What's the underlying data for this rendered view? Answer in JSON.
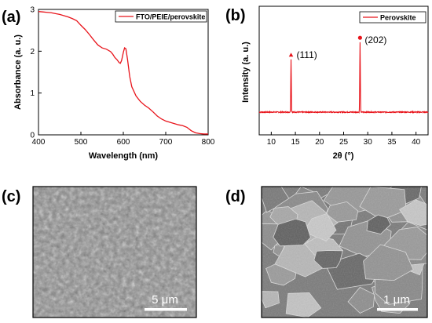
{
  "panels": {
    "a": "(a)",
    "b": "(b)",
    "c": "(c)",
    "d": "(d)"
  },
  "colors": {
    "series": "#e8141b",
    "axis": "#000000"
  },
  "chart_data": [
    {
      "type": "line",
      "panel": "a",
      "xlabel": "Wavelength (nm)",
      "ylabel": "Absorbance (a. u.)",
      "xlim": [
        400,
        800
      ],
      "ylim": [
        0,
        3
      ],
      "xticks": [
        400,
        500,
        600,
        700,
        800
      ],
      "yticks": [
        0,
        1,
        2,
        3
      ],
      "legend_position": "top-right",
      "series": [
        {
          "name": "FTO/PEIE/perovskite",
          "x": [
            400,
            410,
            420,
            430,
            440,
            450,
            460,
            470,
            480,
            490,
            500,
            510,
            520,
            530,
            540,
            550,
            560,
            570,
            575,
            580,
            585,
            590,
            593,
            596,
            600,
            603,
            606,
            610,
            615,
            620,
            630,
            640,
            650,
            660,
            670,
            680,
            690,
            700,
            710,
            720,
            730,
            740,
            750,
            760,
            770,
            780,
            790,
            800
          ],
          "y": [
            2.95,
            2.94,
            2.93,
            2.92,
            2.9,
            2.88,
            2.85,
            2.82,
            2.78,
            2.73,
            2.62,
            2.52,
            2.4,
            2.27,
            2.15,
            2.08,
            2.05,
            1.99,
            1.93,
            1.85,
            1.8,
            1.73,
            1.71,
            1.78,
            1.97,
            2.08,
            2.06,
            1.8,
            1.4,
            1.15,
            0.93,
            0.8,
            0.71,
            0.64,
            0.55,
            0.45,
            0.38,
            0.33,
            0.3,
            0.27,
            0.24,
            0.22,
            0.18,
            0.1,
            0.05,
            0.03,
            0.02,
            0.02
          ]
        }
      ]
    },
    {
      "type": "line",
      "panel": "b",
      "xlabel": "2θ (°)",
      "ylabel": "Intensity (a. u.)",
      "xlim": [
        7.5,
        42.5
      ],
      "xticks": [
        10,
        15,
        20,
        25,
        30,
        35,
        40
      ],
      "legend_position": "top-right",
      "baseline": 0,
      "peaks": [
        {
          "x": 14.1,
          "height": 0.56,
          "label": "(111)",
          "marker": "triangle"
        },
        {
          "x": 28.4,
          "height": 0.74,
          "label": "(202)",
          "marker": "circle"
        }
      ],
      "series": [
        {
          "name": "Perovskite"
        }
      ]
    }
  ],
  "images": [
    {
      "panel": "c",
      "scale_bar": "5 μm"
    },
    {
      "panel": "d",
      "scale_bar": "1 μm"
    }
  ]
}
